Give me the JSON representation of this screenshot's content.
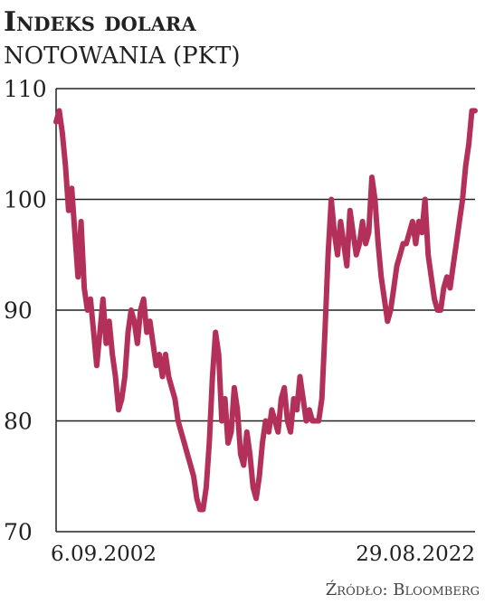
{
  "chart_data": {
    "type": "line",
    "title": "Indeks dolara",
    "subtitle": "NOTOWANIA (PKT)",
    "source": "Źródło: Bloomberg",
    "color": "#b3305a",
    "grid": true,
    "ylim": [
      70,
      110
    ],
    "yticks": [
      70,
      80,
      90,
      100,
      110
    ],
    "categories": [
      "6.09.2002",
      null,
      null,
      null,
      null,
      null,
      null,
      null,
      null,
      null,
      null,
      null,
      null,
      null,
      null,
      null,
      null,
      null,
      null,
      null,
      null,
      null,
      null,
      null,
      null,
      null,
      null,
      null,
      null,
      null,
      null,
      null,
      null,
      null,
      null,
      null,
      null,
      null,
      null,
      null,
      null,
      null,
      null,
      null,
      null,
      null,
      null,
      null,
      null,
      null,
      null,
      null,
      null,
      null,
      null,
      null,
      null,
      null,
      null,
      null,
      null,
      null,
      null,
      null,
      null,
      null,
      null,
      null,
      null,
      null,
      null,
      null,
      null,
      null,
      null,
      null,
      null,
      null,
      null,
      null,
      null,
      null,
      null,
      null,
      null,
      null,
      null,
      null,
      null,
      null,
      null,
      null,
      null,
      null,
      null,
      null,
      null,
      null,
      null,
      null,
      null,
      null,
      null,
      null,
      null,
      null,
      null,
      null,
      null,
      null,
      null,
      null,
      null,
      null,
      null,
      null,
      null,
      null,
      null,
      null,
      null,
      null,
      null,
      null,
      null,
      null,
      null,
      null,
      null,
      null,
      null,
      null,
      null,
      null,
      "29.08.2022"
    ],
    "values": [
      107,
      108,
      106,
      103,
      99,
      101,
      97,
      93,
      98,
      92,
      90,
      91,
      88,
      85,
      88,
      91,
      87,
      89,
      86,
      84,
      81,
      82,
      84,
      88,
      90,
      89,
      87,
      90,
      91,
      88,
      89,
      87,
      85,
      86,
      84,
      86,
      84,
      83,
      82,
      80,
      79,
      78,
      77,
      76,
      75,
      73,
      72,
      72,
      74,
      78,
      84,
      88,
      86,
      80,
      82,
      78,
      79,
      83,
      81,
      77,
      76,
      79,
      77,
      74,
      73,
      75,
      78,
      80,
      79,
      81,
      80,
      79,
      82,
      83,
      80,
      79,
      82,
      81,
      84,
      82,
      80,
      81,
      80,
      80,
      80,
      82,
      88,
      95,
      100,
      97,
      95,
      98,
      96,
      94,
      99,
      97,
      95,
      96,
      98,
      96,
      97,
      102,
      100,
      96,
      93,
      91,
      89,
      90,
      92,
      94,
      95,
      96,
      96,
      97,
      98,
      96,
      98,
      97,
      100,
      95,
      93,
      91,
      90,
      90,
      92,
      93,
      92,
      94,
      96,
      98,
      100,
      103,
      105,
      108,
      108
    ]
  }
}
